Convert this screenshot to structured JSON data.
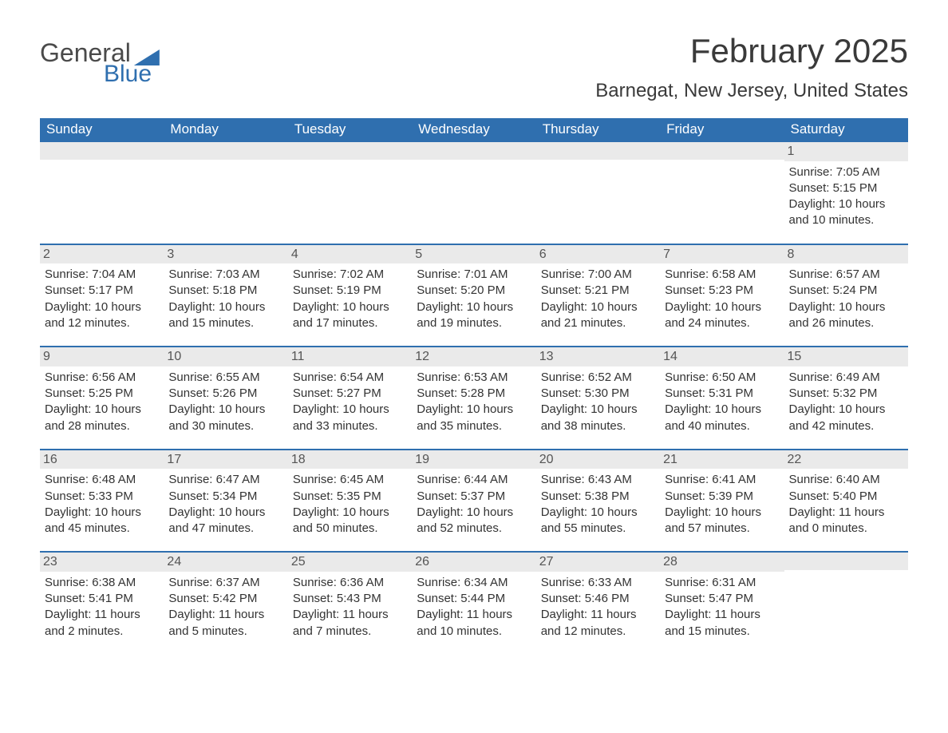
{
  "logo": {
    "general": "General",
    "blue": "Blue"
  },
  "title": "February 2025",
  "location": "Barnegat, New Jersey, United States",
  "colors": {
    "accent": "#2f6faf",
    "header_text": "#ffffff",
    "daynum_bg": "#eaeaea",
    "body_bg": "#ffffff",
    "text": "#333333",
    "logo_gray": "#4a4a4a"
  },
  "calendar": {
    "columns": [
      "Sunday",
      "Monday",
      "Tuesday",
      "Wednesday",
      "Thursday",
      "Friday",
      "Saturday"
    ],
    "weeks": [
      {
        "days": [
          {
            "num": "",
            "lines": []
          },
          {
            "num": "",
            "lines": []
          },
          {
            "num": "",
            "lines": []
          },
          {
            "num": "",
            "lines": []
          },
          {
            "num": "",
            "lines": []
          },
          {
            "num": "",
            "lines": []
          },
          {
            "num": "1",
            "lines": [
              "Sunrise: 7:05 AM",
              "Sunset: 5:15 PM",
              "Daylight: 10 hours and 10 minutes."
            ]
          }
        ]
      },
      {
        "days": [
          {
            "num": "2",
            "lines": [
              "Sunrise: 7:04 AM",
              "Sunset: 5:17 PM",
              "Daylight: 10 hours and 12 minutes."
            ]
          },
          {
            "num": "3",
            "lines": [
              "Sunrise: 7:03 AM",
              "Sunset: 5:18 PM",
              "Daylight: 10 hours and 15 minutes."
            ]
          },
          {
            "num": "4",
            "lines": [
              "Sunrise: 7:02 AM",
              "Sunset: 5:19 PM",
              "Daylight: 10 hours and 17 minutes."
            ]
          },
          {
            "num": "5",
            "lines": [
              "Sunrise: 7:01 AM",
              "Sunset: 5:20 PM",
              "Daylight: 10 hours and 19 minutes."
            ]
          },
          {
            "num": "6",
            "lines": [
              "Sunrise: 7:00 AM",
              "Sunset: 5:21 PM",
              "Daylight: 10 hours and 21 minutes."
            ]
          },
          {
            "num": "7",
            "lines": [
              "Sunrise: 6:58 AM",
              "Sunset: 5:23 PM",
              "Daylight: 10 hours and 24 minutes."
            ]
          },
          {
            "num": "8",
            "lines": [
              "Sunrise: 6:57 AM",
              "Sunset: 5:24 PM",
              "Daylight: 10 hours and 26 minutes."
            ]
          }
        ]
      },
      {
        "days": [
          {
            "num": "9",
            "lines": [
              "Sunrise: 6:56 AM",
              "Sunset: 5:25 PM",
              "Daylight: 10 hours and 28 minutes."
            ]
          },
          {
            "num": "10",
            "lines": [
              "Sunrise: 6:55 AM",
              "Sunset: 5:26 PM",
              "Daylight: 10 hours and 30 minutes."
            ]
          },
          {
            "num": "11",
            "lines": [
              "Sunrise: 6:54 AM",
              "Sunset: 5:27 PM",
              "Daylight: 10 hours and 33 minutes."
            ]
          },
          {
            "num": "12",
            "lines": [
              "Sunrise: 6:53 AM",
              "Sunset: 5:28 PM",
              "Daylight: 10 hours and 35 minutes."
            ]
          },
          {
            "num": "13",
            "lines": [
              "Sunrise: 6:52 AM",
              "Sunset: 5:30 PM",
              "Daylight: 10 hours and 38 minutes."
            ]
          },
          {
            "num": "14",
            "lines": [
              "Sunrise: 6:50 AM",
              "Sunset: 5:31 PM",
              "Daylight: 10 hours and 40 minutes."
            ]
          },
          {
            "num": "15",
            "lines": [
              "Sunrise: 6:49 AM",
              "Sunset: 5:32 PM",
              "Daylight: 10 hours and 42 minutes."
            ]
          }
        ]
      },
      {
        "days": [
          {
            "num": "16",
            "lines": [
              "Sunrise: 6:48 AM",
              "Sunset: 5:33 PM",
              "Daylight: 10 hours and 45 minutes."
            ]
          },
          {
            "num": "17",
            "lines": [
              "Sunrise: 6:47 AM",
              "Sunset: 5:34 PM",
              "Daylight: 10 hours and 47 minutes."
            ]
          },
          {
            "num": "18",
            "lines": [
              "Sunrise: 6:45 AM",
              "Sunset: 5:35 PM",
              "Daylight: 10 hours and 50 minutes."
            ]
          },
          {
            "num": "19",
            "lines": [
              "Sunrise: 6:44 AM",
              "Sunset: 5:37 PM",
              "Daylight: 10 hours and 52 minutes."
            ]
          },
          {
            "num": "20",
            "lines": [
              "Sunrise: 6:43 AM",
              "Sunset: 5:38 PM",
              "Daylight: 10 hours and 55 minutes."
            ]
          },
          {
            "num": "21",
            "lines": [
              "Sunrise: 6:41 AM",
              "Sunset: 5:39 PM",
              "Daylight: 10 hours and 57 minutes."
            ]
          },
          {
            "num": "22",
            "lines": [
              "Sunrise: 6:40 AM",
              "Sunset: 5:40 PM",
              "Daylight: 11 hours and 0 minutes."
            ]
          }
        ]
      },
      {
        "days": [
          {
            "num": "23",
            "lines": [
              "Sunrise: 6:38 AM",
              "Sunset: 5:41 PM",
              "Daylight: 11 hours and 2 minutes."
            ]
          },
          {
            "num": "24",
            "lines": [
              "Sunrise: 6:37 AM",
              "Sunset: 5:42 PM",
              "Daylight: 11 hours and 5 minutes."
            ]
          },
          {
            "num": "25",
            "lines": [
              "Sunrise: 6:36 AM",
              "Sunset: 5:43 PM",
              "Daylight: 11 hours and 7 minutes."
            ]
          },
          {
            "num": "26",
            "lines": [
              "Sunrise: 6:34 AM",
              "Sunset: 5:44 PM",
              "Daylight: 11 hours and 10 minutes."
            ]
          },
          {
            "num": "27",
            "lines": [
              "Sunrise: 6:33 AM",
              "Sunset: 5:46 PM",
              "Daylight: 11 hours and 12 minutes."
            ]
          },
          {
            "num": "28",
            "lines": [
              "Sunrise: 6:31 AM",
              "Sunset: 5:47 PM",
              "Daylight: 11 hours and 15 minutes."
            ]
          },
          {
            "num": "",
            "lines": []
          }
        ]
      }
    ]
  }
}
